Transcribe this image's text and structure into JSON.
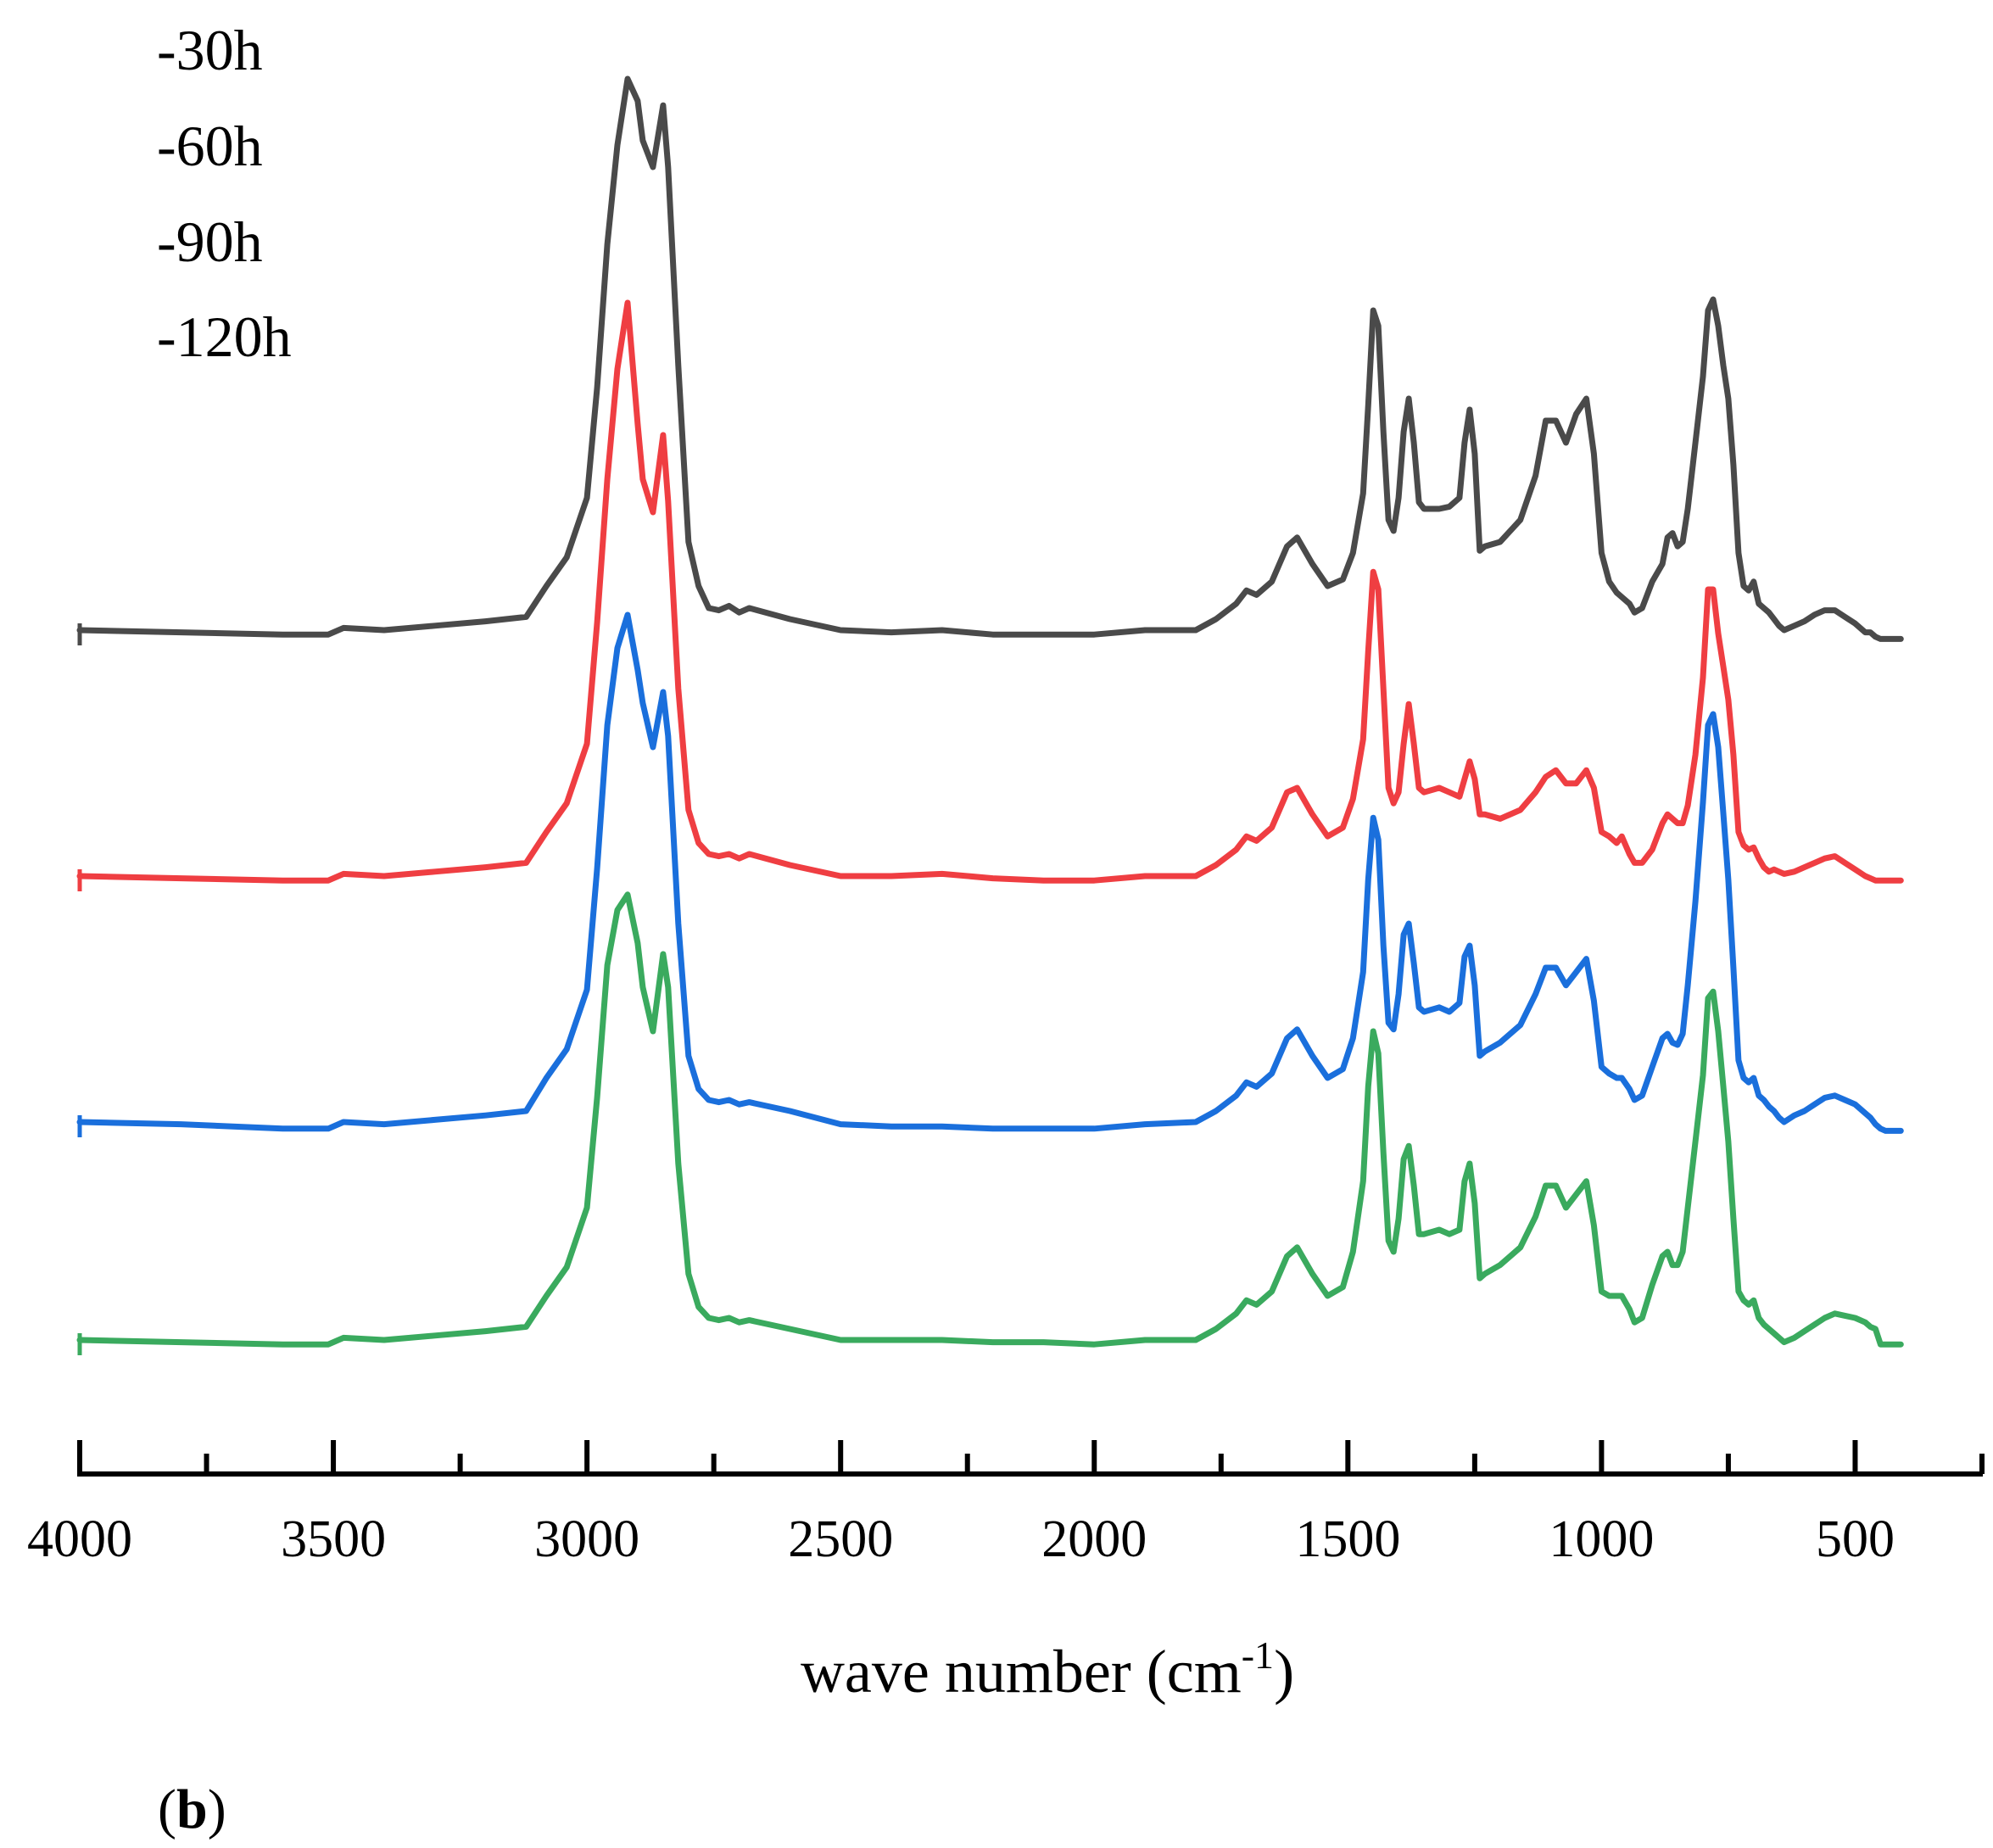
{
  "chart_data": {
    "type": "line",
    "title": "",
    "xlabel": "wave number (cm",
    "xlabel_sup": "-1",
    "xlabel_close": ")",
    "ylabel": "",
    "xlim": [
      4000,
      250
    ],
    "x_reversed": true,
    "x_ticks": [
      4000,
      3500,
      3000,
      2500,
      2000,
      1500,
      1000,
      500
    ],
    "x_tick_labels": [
      "4000",
      "3500",
      "3000",
      "2500",
      "2000",
      "1500",
      "1000",
      "500"
    ],
    "minor_tick_step": 250,
    "grid": false,
    "legend_position": "top-left",
    "panel_label": {
      "open": "(",
      "bold": "b",
      "close": ")"
    },
    "series": [
      {
        "name": "-30h",
        "color": "#4a4a4a",
        "offset": 3.0,
        "x": [
          4000,
          3800,
          3600,
          3510,
          3480,
          3400,
          3300,
          3200,
          3120,
          3080,
          3040,
          3000,
          2980,
          2960,
          2940,
          2920,
          2900,
          2890,
          2870,
          2850,
          2840,
          2820,
          2800,
          2780,
          2760,
          2740,
          2720,
          2700,
          2680,
          2600,
          2500,
          2400,
          2300,
          2200,
          2100,
          2000,
          1900,
          1800,
          1760,
          1720,
          1700,
          1680,
          1650,
          1620,
          1600,
          1570,
          1540,
          1510,
          1490,
          1470,
          1460,
          1450,
          1440,
          1430,
          1420,
          1410,
          1400,
          1390,
          1380,
          1370,
          1360,
          1350,
          1320,
          1300,
          1280,
          1270,
          1260,
          1250,
          1240,
          1230,
          1200,
          1160,
          1130,
          1110,
          1090,
          1070,
          1050,
          1030,
          1015,
          1000,
          985,
          970,
          960,
          945,
          935,
          920,
          900,
          880,
          870,
          860,
          850,
          840,
          830,
          815,
          800,
          790,
          780,
          770,
          760,
          750,
          740,
          730,
          720,
          710,
          700,
          690,
          680,
          670,
          660,
          650,
          640,
          620,
          600,
          580,
          560,
          540,
          520,
          500,
          480,
          470,
          460,
          450,
          440,
          410
        ],
        "values": [
          0.0,
          -0.01,
          -0.02,
          -0.02,
          0.01,
          0.0,
          0.02,
          0.04,
          0.06,
          0.2,
          0.33,
          0.6,
          1.1,
          1.75,
          2.2,
          2.5,
          2.4,
          2.22,
          2.1,
          2.38,
          2.1,
          1.2,
          0.4,
          0.2,
          0.1,
          0.09,
          0.11,
          0.08,
          0.1,
          0.05,
          0.0,
          -0.01,
          0.0,
          -0.02,
          -0.02,
          -0.02,
          0.0,
          0.0,
          0.05,
          0.12,
          0.18,
          0.16,
          0.22,
          0.38,
          0.42,
          0.3,
          0.2,
          0.23,
          0.35,
          0.62,
          1.02,
          1.45,
          1.38,
          0.9,
          0.5,
          0.45,
          0.6,
          0.9,
          1.05,
          0.85,
          0.58,
          0.55,
          0.55,
          0.56,
          0.6,
          0.85,
          1.0,
          0.8,
          0.36,
          0.38,
          0.4,
          0.5,
          0.7,
          0.95,
          0.95,
          0.85,
          0.98,
          1.05,
          0.8,
          0.35,
          0.22,
          0.17,
          0.15,
          0.12,
          0.08,
          0.1,
          0.22,
          0.3,
          0.42,
          0.44,
          0.38,
          0.4,
          0.55,
          0.85,
          1.15,
          1.45,
          1.5,
          1.38,
          1.2,
          1.05,
          0.75,
          0.35,
          0.2,
          0.18,
          0.22,
          0.12,
          0.1,
          0.08,
          0.05,
          0.02,
          0.0,
          0.02,
          0.04,
          0.07,
          0.09,
          0.09,
          0.06,
          0.03,
          -0.01,
          -0.01,
          -0.03,
          -0.04,
          -0.04,
          -0.04
        ]
      },
      {
        "name": "-60h",
        "color": "#ef3e42",
        "offset": 2.0,
        "x": [
          4000,
          3800,
          3600,
          3510,
          3480,
          3400,
          3300,
          3200,
          3120,
          3080,
          3040,
          3000,
          2980,
          2960,
          2940,
          2920,
          2900,
          2890,
          2870,
          2850,
          2840,
          2820,
          2800,
          2780,
          2760,
          2740,
          2720,
          2700,
          2680,
          2600,
          2500,
          2400,
          2300,
          2200,
          2100,
          2000,
          1900,
          1800,
          1760,
          1720,
          1700,
          1680,
          1650,
          1620,
          1600,
          1570,
          1540,
          1510,
          1490,
          1470,
          1460,
          1450,
          1440,
          1430,
          1420,
          1410,
          1400,
          1390,
          1380,
          1370,
          1360,
          1350,
          1320,
          1300,
          1280,
          1270,
          1260,
          1250,
          1240,
          1230,
          1200,
          1160,
          1130,
          1110,
          1090,
          1070,
          1050,
          1030,
          1015,
          1000,
          985,
          970,
          960,
          945,
          935,
          920,
          900,
          880,
          870,
          860,
          850,
          840,
          830,
          815,
          800,
          790,
          780,
          770,
          760,
          750,
          740,
          730,
          720,
          710,
          700,
          690,
          680,
          670,
          660,
          650,
          640,
          620,
          600,
          580,
          560,
          540,
          520,
          500,
          480,
          470,
          460,
          450,
          440,
          410
        ],
        "values": [
          0.0,
          -0.01,
          -0.02,
          -0.02,
          0.01,
          0.0,
          0.02,
          0.04,
          0.06,
          0.2,
          0.33,
          0.6,
          1.15,
          1.8,
          2.3,
          2.6,
          2.05,
          1.8,
          1.65,
          2.0,
          1.7,
          0.85,
          0.3,
          0.15,
          0.1,
          0.09,
          0.1,
          0.08,
          0.1,
          0.05,
          0.0,
          0.0,
          0.01,
          -0.01,
          -0.02,
          -0.02,
          0.0,
          0.0,
          0.05,
          0.12,
          0.18,
          0.16,
          0.22,
          0.38,
          0.4,
          0.28,
          0.18,
          0.22,
          0.35,
          0.62,
          1.02,
          1.38,
          1.3,
          0.85,
          0.4,
          0.33,
          0.38,
          0.6,
          0.78,
          0.6,
          0.4,
          0.38,
          0.4,
          0.38,
          0.36,
          0.44,
          0.52,
          0.44,
          0.28,
          0.28,
          0.26,
          0.3,
          0.38,
          0.45,
          0.48,
          0.42,
          0.42,
          0.48,
          0.4,
          0.2,
          0.18,
          0.15,
          0.18,
          0.1,
          0.06,
          0.06,
          0.12,
          0.24,
          0.28,
          0.26,
          0.24,
          0.24,
          0.32,
          0.55,
          0.9,
          1.3,
          1.3,
          1.1,
          0.95,
          0.8,
          0.55,
          0.2,
          0.14,
          0.12,
          0.13,
          0.08,
          0.04,
          0.02,
          0.03,
          0.02,
          0.01,
          0.02,
          0.04,
          0.06,
          0.08,
          0.09,
          0.06,
          0.03,
          0.0,
          -0.01,
          -0.02,
          -0.02,
          -0.02,
          -0.02
        ]
      },
      {
        "name": "-90h",
        "color": "#1a6fdc",
        "offset": 1.0,
        "x": [
          4000,
          3800,
          3600,
          3510,
          3480,
          3400,
          3300,
          3200,
          3120,
          3080,
          3040,
          3000,
          2980,
          2960,
          2940,
          2920,
          2900,
          2890,
          2870,
          2850,
          2840,
          2820,
          2800,
          2780,
          2760,
          2740,
          2720,
          2700,
          2680,
          2600,
          2500,
          2400,
          2300,
          2200,
          2100,
          2000,
          1900,
          1800,
          1760,
          1720,
          1700,
          1680,
          1650,
          1620,
          1600,
          1570,
          1540,
          1510,
          1490,
          1470,
          1460,
          1450,
          1440,
          1430,
          1420,
          1410,
          1400,
          1390,
          1380,
          1370,
          1360,
          1350,
          1320,
          1300,
          1280,
          1270,
          1260,
          1250,
          1240,
          1230,
          1200,
          1160,
          1130,
          1110,
          1090,
          1070,
          1050,
          1030,
          1015,
          1000,
          985,
          970,
          960,
          945,
          935,
          920,
          900,
          880,
          870,
          860,
          850,
          840,
          830,
          815,
          800,
          790,
          780,
          770,
          760,
          750,
          740,
          730,
          720,
          710,
          700,
          690,
          680,
          670,
          660,
          650,
          640,
          620,
          600,
          580,
          560,
          540,
          520,
          500,
          480,
          470,
          460,
          450,
          440,
          410
        ],
        "values": [
          0.0,
          -0.01,
          -0.03,
          -0.03,
          0.0,
          -0.01,
          0.01,
          0.03,
          0.05,
          0.2,
          0.33,
          0.6,
          1.15,
          1.8,
          2.15,
          2.3,
          2.05,
          1.9,
          1.7,
          1.95,
          1.75,
          0.9,
          0.3,
          0.15,
          0.1,
          0.09,
          0.1,
          0.08,
          0.09,
          0.05,
          -0.01,
          -0.02,
          -0.02,
          -0.03,
          -0.03,
          -0.03,
          -0.01,
          0.0,
          0.05,
          0.12,
          0.18,
          0.16,
          0.22,
          0.38,
          0.42,
          0.3,
          0.2,
          0.24,
          0.38,
          0.68,
          1.1,
          1.38,
          1.28,
          0.8,
          0.45,
          0.42,
          0.58,
          0.85,
          0.9,
          0.72,
          0.52,
          0.5,
          0.52,
          0.5,
          0.54,
          0.75,
          0.8,
          0.62,
          0.3,
          0.32,
          0.36,
          0.44,
          0.58,
          0.7,
          0.7,
          0.62,
          0.68,
          0.74,
          0.55,
          0.25,
          0.22,
          0.2,
          0.2,
          0.15,
          0.1,
          0.12,
          0.25,
          0.38,
          0.4,
          0.36,
          0.35,
          0.4,
          0.62,
          1.0,
          1.45,
          1.8,
          1.85,
          1.7,
          1.4,
          1.1,
          0.7,
          0.28,
          0.2,
          0.18,
          0.2,
          0.12,
          0.1,
          0.07,
          0.05,
          0.02,
          0.0,
          0.03,
          0.05,
          0.08,
          0.11,
          0.12,
          0.1,
          0.08,
          0.04,
          0.02,
          -0.01,
          -0.03,
          -0.04,
          -0.04
        ]
      },
      {
        "name": "-120h",
        "color": "#3aaa5e",
        "offset": 0.0,
        "x": [
          4000,
          3800,
          3600,
          3510,
          3480,
          3400,
          3300,
          3200,
          3120,
          3080,
          3040,
          3000,
          2980,
          2960,
          2940,
          2920,
          2900,
          2890,
          2870,
          2850,
          2840,
          2820,
          2800,
          2780,
          2760,
          2740,
          2720,
          2700,
          2680,
          2600,
          2500,
          2400,
          2300,
          2200,
          2100,
          2000,
          1900,
          1800,
          1760,
          1720,
          1700,
          1680,
          1650,
          1620,
          1600,
          1570,
          1540,
          1510,
          1490,
          1470,
          1460,
          1450,
          1440,
          1430,
          1420,
          1410,
          1400,
          1390,
          1380,
          1370,
          1360,
          1350,
          1320,
          1300,
          1280,
          1270,
          1260,
          1250,
          1240,
          1230,
          1200,
          1160,
          1130,
          1110,
          1090,
          1070,
          1050,
          1030,
          1015,
          1000,
          985,
          970,
          960,
          945,
          935,
          920,
          900,
          880,
          870,
          860,
          850,
          840,
          830,
          815,
          800,
          790,
          780,
          770,
          760,
          750,
          740,
          730,
          720,
          710,
          700,
          690,
          680,
          670,
          660,
          650,
          640,
          620,
          600,
          580,
          560,
          540,
          520,
          500,
          480,
          470,
          460,
          450,
          440,
          410
        ],
        "values": [
          0.0,
          -0.01,
          -0.02,
          -0.02,
          0.01,
          0.0,
          0.02,
          0.04,
          0.06,
          0.2,
          0.33,
          0.6,
          1.1,
          1.7,
          1.95,
          2.02,
          1.8,
          1.6,
          1.4,
          1.75,
          1.6,
          0.8,
          0.3,
          0.15,
          0.1,
          0.09,
          0.1,
          0.08,
          0.09,
          0.05,
          0.0,
          0.0,
          0.0,
          -0.01,
          -0.01,
          -0.02,
          0.0,
          0.0,
          0.05,
          0.12,
          0.18,
          0.16,
          0.22,
          0.38,
          0.42,
          0.3,
          0.2,
          0.24,
          0.4,
          0.72,
          1.15,
          1.4,
          1.3,
          0.85,
          0.45,
          0.4,
          0.55,
          0.82,
          0.88,
          0.7,
          0.48,
          0.48,
          0.5,
          0.48,
          0.5,
          0.72,
          0.8,
          0.62,
          0.28,
          0.3,
          0.34,
          0.42,
          0.56,
          0.7,
          0.7,
          0.6,
          0.66,
          0.72,
          0.52,
          0.22,
          0.2,
          0.2,
          0.2,
          0.14,
          0.08,
          0.1,
          0.25,
          0.38,
          0.4,
          0.34,
          0.34,
          0.4,
          0.6,
          0.9,
          1.2,
          1.55,
          1.58,
          1.4,
          1.15,
          0.9,
          0.55,
          0.22,
          0.18,
          0.16,
          0.18,
          0.1,
          0.07,
          0.05,
          0.03,
          0.01,
          -0.01,
          0.01,
          0.04,
          0.07,
          0.1,
          0.12,
          0.11,
          0.1,
          0.08,
          0.06,
          0.05,
          -0.02,
          -0.02,
          -0.02
        ]
      }
    ]
  }
}
